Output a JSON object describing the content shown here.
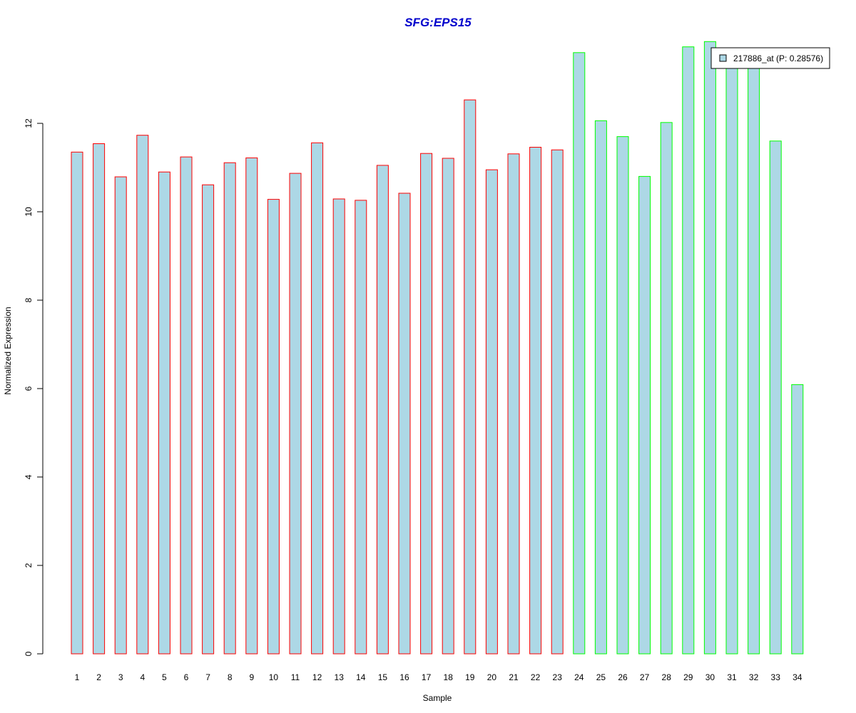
{
  "chart_data": {
    "type": "bar",
    "title": "SFG:EPS15",
    "xlabel": "Sample",
    "ylabel": "Normalized Expression",
    "categories": [
      "1",
      "2",
      "3",
      "4",
      "5",
      "6",
      "7",
      "8",
      "9",
      "10",
      "11",
      "12",
      "13",
      "14",
      "15",
      "16",
      "17",
      "18",
      "19",
      "20",
      "21",
      "22",
      "23",
      "24",
      "25",
      "26",
      "27",
      "28",
      "29",
      "30",
      "31",
      "32",
      "33",
      "34"
    ],
    "values": [
      11.35,
      11.54,
      10.79,
      11.73,
      10.9,
      11.24,
      10.61,
      11.11,
      11.22,
      10.28,
      10.87,
      11.56,
      10.29,
      10.26,
      11.05,
      10.42,
      11.32,
      11.21,
      12.53,
      10.95,
      11.31,
      11.46,
      11.4,
      13.6,
      12.06,
      11.7,
      10.8,
      12.02,
      13.73,
      13.85,
      13.3,
      13.35,
      11.6,
      6.09
    ],
    "ylim": [
      0,
      14
    ],
    "yticks": [
      0,
      2,
      4,
      6,
      8,
      10,
      12
    ],
    "grid": false,
    "legend": {
      "label": "217886_at (P: 0.28576)",
      "placement": "top-right"
    },
    "group_split_after": "23"
  },
  "colors": {
    "bar_fill": "#add8e6",
    "group1_border": "#ff0000",
    "group2_border": "#00ff00",
    "title": "#0000cc",
    "axis": "#000000"
  }
}
